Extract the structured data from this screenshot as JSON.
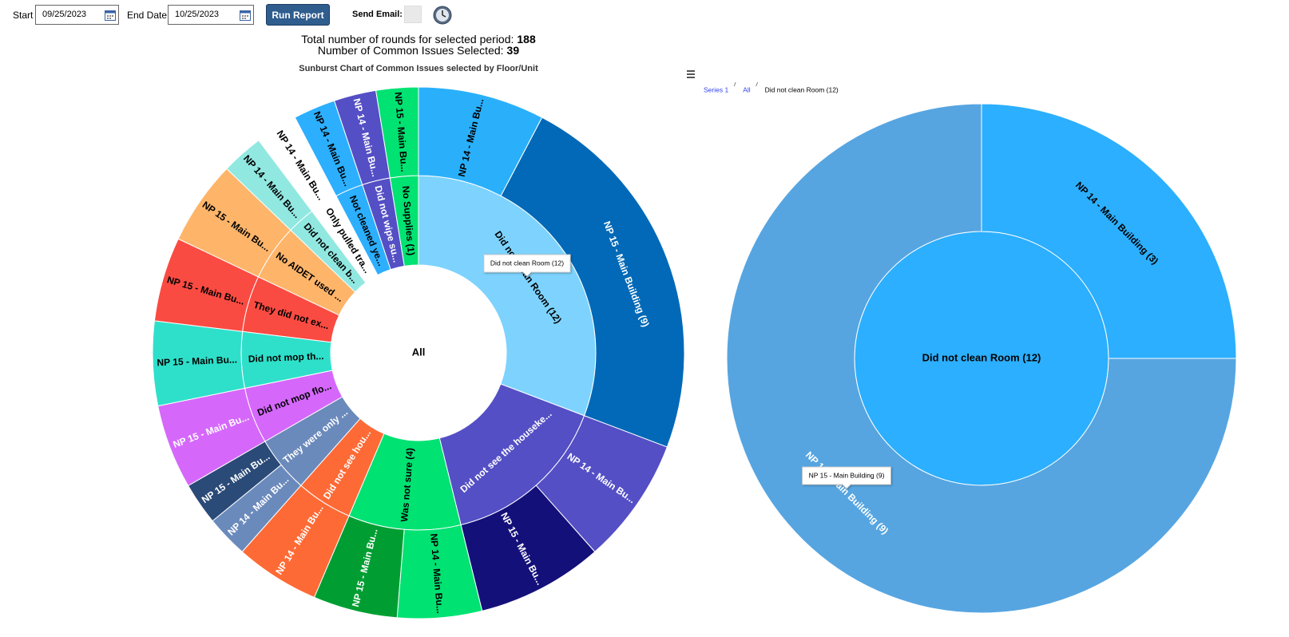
{
  "form": {
    "start_label": "Start",
    "start_value": "09/25/2023",
    "end_label": "End Date",
    "end_value": "10/25/2023",
    "run_button": "Run Report",
    "email_label": "Send Email:"
  },
  "summary": {
    "rounds_label": "Total number of rounds for selected period:",
    "rounds_value": 188,
    "issues_label": "Number of Common Issues Selected:",
    "issues_value": 39
  },
  "chart_data": [
    {
      "type": "sunburst",
      "title": "Sunburst Chart of Common Issues selected by Floor/Unit",
      "root": {
        "name": "All"
      },
      "tooltip": "Did not clean Room (12)",
      "nodes": [
        {
          "name": "Did not clean Room (12)",
          "value": 12,
          "color": "#7dd3fd",
          "label_color": "#000000",
          "children": [
            {
              "name": "NP 14 - Main Bu...",
              "value": 3,
              "color": "#2ab0fb",
              "label_color": "#000000"
            },
            {
              "name": "NP 15 - Main Building (9)",
              "value": 9,
              "color": "#0169b7",
              "label_color": "#ffffff"
            }
          ]
        },
        {
          "name": "Did not see the houseke...",
          "value": 6,
          "color": "#544fc5",
          "label_color": "#ffffff",
          "children": [
            {
              "name": "NP 14 - Main Bu...",
              "value": 3,
              "color": "#544fc5",
              "label_color": "#ffffff"
            },
            {
              "name": "NP 15 - Main Bu...",
              "value": 3,
              "color": "#14107a",
              "label_color": "#ffffff"
            }
          ]
        },
        {
          "name": "Was not sure (4)",
          "value": 4,
          "color": "#00e272",
          "label_color": "#000000",
          "children": [
            {
              "name": "NP 14 - Main Bu...",
              "value": 2,
              "color": "#00e272",
              "label_color": "#000000"
            },
            {
              "name": "NP 15 - Main Bu...",
              "value": 2,
              "color": "#009e32",
              "label_color": "#ffffff"
            }
          ]
        },
        {
          "name": "Did not see hou...",
          "value": 2,
          "color": "#fe6a35",
          "label_color": "#ffffff",
          "children": [
            {
              "name": "NP 14 - Main Bu...",
              "value": 2,
              "color": "#fe6a35",
              "label_color": "#ffffff"
            }
          ]
        },
        {
          "name": "They were only ...",
          "value": 2,
          "color": "#6b8abc",
          "label_color": "#ffffff",
          "children": [
            {
              "name": "NP 14 - Main Bu...",
              "value": 1,
              "color": "#6b8abc",
              "label_color": "#ffffff"
            },
            {
              "name": "NP 15 - Main Bu...",
              "value": 1,
              "color": "#2a4a78",
              "label_color": "#ffffff"
            }
          ]
        },
        {
          "name": "Did not mop flo...",
          "value": 2,
          "color": "#d568fb",
          "label_color": "#000000",
          "children": [
            {
              "name": "NP 15 - Main Bu...",
              "value": 2,
              "color": "#d568fb",
              "label_color": "#ffffff"
            }
          ]
        },
        {
          "name": "Did not mop th...",
          "value": 2,
          "color": "#2ee0ca",
          "label_color": "#000000",
          "children": [
            {
              "name": "NP 15 - Main Bu...",
              "value": 2,
              "color": "#2ee0ca",
              "label_color": "#000000"
            }
          ]
        },
        {
          "name": "They did not ex...",
          "value": 2,
          "color": "#fa4b42",
          "label_color": "#000000",
          "children": [
            {
              "name": "NP 15 - Main Bu...",
              "value": 2,
              "color": "#fa4b42",
              "label_color": "#000000"
            }
          ]
        },
        {
          "name": "No AIDET used ...",
          "value": 2,
          "color": "#feb56a",
          "label_color": "#000000",
          "children": [
            {
              "name": "NP 15 - Main Bu...",
              "value": 2,
              "color": "#feb56a",
              "label_color": "#000000"
            }
          ]
        },
        {
          "name": "Did not clean b...",
          "value": 1,
          "color": "#91e8e1",
          "label_color": "#000000",
          "children": [
            {
              "name": "NP 14 - Main Bu...",
              "value": 1,
              "color": "#91e8e1",
              "label_color": "#000000"
            }
          ]
        },
        {
          "name": "Only pulled tra...",
          "value": 1,
          "color": "#ffffff",
          "label_color": "#000000",
          "children": [
            {
              "name": "NP 14 - Main Bu...",
              "value": 1,
              "color": "#ffffff",
              "label_color": "#000000"
            }
          ]
        },
        {
          "name": "Not cleaned ye...",
          "value": 1,
          "color": "#2caffe",
          "label_color": "#000000",
          "children": [
            {
              "name": "NP 14 - Main Bu...",
              "value": 1,
              "color": "#2caffe",
              "label_color": "#000000"
            }
          ]
        },
        {
          "name": "Did not wipe su...",
          "value": 1,
          "color": "#544fc5",
          "label_color": "#ffffff",
          "children": [
            {
              "name": "NP 14 - Main Bu...",
              "value": 1,
              "color": "#544fc5",
              "label_color": "#ffffff"
            }
          ]
        },
        {
          "name": "No Supplies (1)",
          "value": 1,
          "color": "#00e272",
          "label_color": "#000000",
          "children": [
            {
              "name": "NP 15 - Main Bu...",
              "value": 1,
              "color": "#00e272",
              "label_color": "#000000"
            }
          ]
        }
      ]
    },
    {
      "type": "sunburst",
      "breadcrumb": [
        "Series 1",
        "All",
        "Did not clean Room (12)"
      ],
      "root": {
        "name": "Did not clean Room (12)",
        "value": 12,
        "color": "#2caffe",
        "label_color": "#000000"
      },
      "tooltip": "NP 15 - Main Building (9)",
      "nodes": [
        {
          "name": "NP 14 - Main Building (3)",
          "value": 3,
          "color": "#2caffe",
          "label_color": "#000000"
        },
        {
          "name": "NP 15 - Main Building (9)",
          "value": 9,
          "color": "#56a5e1",
          "label_color": "#ffffff"
        }
      ]
    }
  ]
}
